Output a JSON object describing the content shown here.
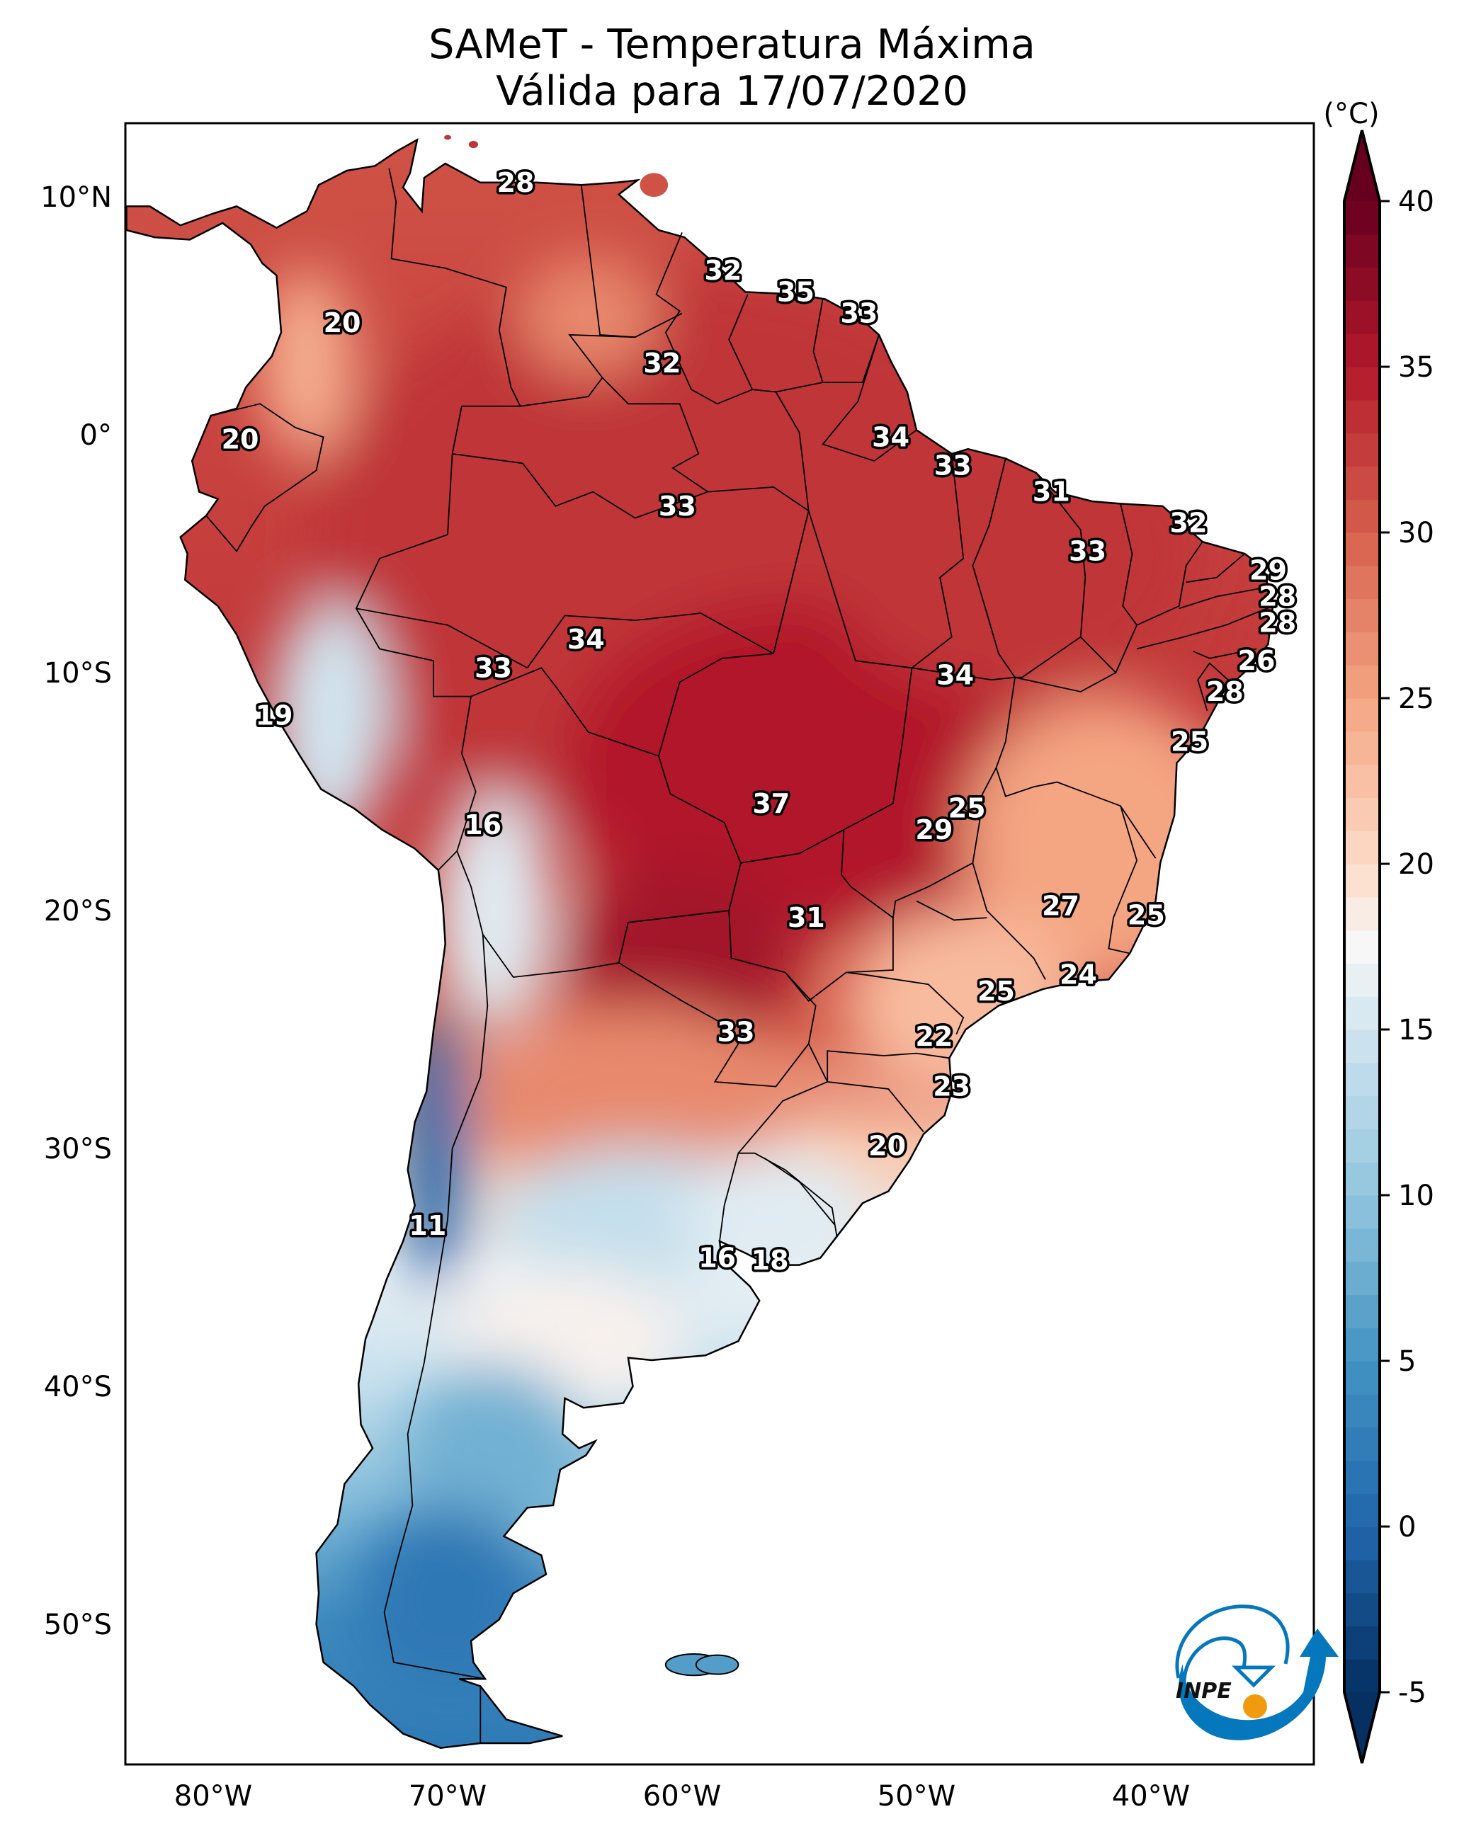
{
  "title": {
    "line1": "SAMeT - Temperatura Máxima",
    "line2": "Válida para 17/07/2020"
  },
  "colorbar": {
    "unit_label": "(°C)",
    "min": -5,
    "max": 40,
    "extend": "both",
    "ticks": [
      "40",
      "35",
      "30",
      "25",
      "20",
      "15",
      "10",
      "5",
      "0",
      "-5"
    ],
    "tick_values": [
      40,
      35,
      30,
      25,
      20,
      15,
      10,
      5,
      0,
      -5
    ],
    "colormap": "RdBu_r",
    "stops": [
      {
        "v": -5,
        "c": "#053061"
      },
      {
        "v": 0,
        "c": "#2166ac"
      },
      {
        "v": 5,
        "c": "#4393c3"
      },
      {
        "v": 10,
        "c": "#92c5de"
      },
      {
        "v": 15,
        "c": "#d1e5f0"
      },
      {
        "v": 17.5,
        "c": "#f7f7f7"
      },
      {
        "v": 20,
        "c": "#fddbc7"
      },
      {
        "v": 25,
        "c": "#f4a582"
      },
      {
        "v": 30,
        "c": "#d6604d"
      },
      {
        "v": 35,
        "c": "#b2182b"
      },
      {
        "v": 40,
        "c": "#67001f"
      }
    ]
  },
  "axes": {
    "lat_ticks": [
      {
        "v": 10,
        "label": "10°N"
      },
      {
        "v": 0,
        "label": "0°"
      },
      {
        "v": -10,
        "label": "10°S"
      },
      {
        "v": -20,
        "label": "20°S"
      },
      {
        "v": -30,
        "label": "30°S"
      },
      {
        "v": -40,
        "label": "40°S"
      },
      {
        "v": -50,
        "label": "50°S"
      }
    ],
    "lon_ticks": [
      {
        "v": -80,
        "label": "80°W"
      },
      {
        "v": -70,
        "label": "70°W"
      },
      {
        "v": -60,
        "label": "60°W"
      },
      {
        "v": -50,
        "label": "50°W"
      },
      {
        "v": -40,
        "label": "40°W"
      }
    ],
    "extent": {
      "lon": [
        -83.75,
        -33.05
      ],
      "lat": [
        -55.9,
        13.1
      ]
    }
  },
  "chart_data": {
    "type": "heatmap",
    "title": "SAMeT - Temperatura Máxima / Válida para 17/07/2020",
    "variable": "Maximum temperature",
    "unit": "°C",
    "xlabel": "",
    "ylabel": "",
    "grid": false,
    "legend": "colorbar right",
    "clim": [
      -5,
      40
    ],
    "point_labels": [
      {
        "lon": -67.1,
        "lat": 10.6,
        "value": 28
      },
      {
        "lon": -74.5,
        "lat": 4.7,
        "value": 20
      },
      {
        "lon": -58.25,
        "lat": 6.9,
        "value": 32
      },
      {
        "lon": -55.15,
        "lat": 6.0,
        "value": 35
      },
      {
        "lon": -52.45,
        "lat": 5.1,
        "value": 33
      },
      {
        "lon": -60.85,
        "lat": 3.0,
        "value": 32
      },
      {
        "lon": -78.85,
        "lat": -0.2,
        "value": 20
      },
      {
        "lon": -51.1,
        "lat": -0.1,
        "value": 34
      },
      {
        "lon": -48.45,
        "lat": -1.3,
        "value": 33
      },
      {
        "lon": -60.2,
        "lat": -3.0,
        "value": 33
      },
      {
        "lon": -44.25,
        "lat": -2.4,
        "value": 31
      },
      {
        "lon": -38.4,
        "lat": -3.7,
        "value": 32
      },
      {
        "lon": -42.7,
        "lat": -4.9,
        "value": 33
      },
      {
        "lon": -35.0,
        "lat": -5.7,
        "value": 29
      },
      {
        "lon": -34.6,
        "lat": -6.8,
        "value": 28
      },
      {
        "lon": -34.6,
        "lat": -7.9,
        "value": 28
      },
      {
        "lon": -64.1,
        "lat": -8.6,
        "value": 34
      },
      {
        "lon": -68.05,
        "lat": -9.8,
        "value": 33
      },
      {
        "lon": -48.35,
        "lat": -10.1,
        "value": 34
      },
      {
        "lon": -35.5,
        "lat": -9.5,
        "value": 26
      },
      {
        "lon": -36.85,
        "lat": -10.8,
        "value": 28
      },
      {
        "lon": -77.4,
        "lat": -11.8,
        "value": 19
      },
      {
        "lon": -38.35,
        "lat": -12.9,
        "value": 25
      },
      {
        "lon": -68.5,
        "lat": -16.4,
        "value": 16
      },
      {
        "lon": -56.2,
        "lat": -15.5,
        "value": 37
      },
      {
        "lon": -47.85,
        "lat": -15.7,
        "value": 25
      },
      {
        "lon": -49.25,
        "lat": -16.6,
        "value": 29
      },
      {
        "lon": -43.85,
        "lat": -19.8,
        "value": 27
      },
      {
        "lon": -40.2,
        "lat": -20.2,
        "value": 25
      },
      {
        "lon": -54.7,
        "lat": -20.3,
        "value": 31
      },
      {
        "lon": -43.1,
        "lat": -22.7,
        "value": 24
      },
      {
        "lon": -46.6,
        "lat": -23.4,
        "value": 25
      },
      {
        "lon": -57.7,
        "lat": -25.1,
        "value": 33
      },
      {
        "lon": -49.25,
        "lat": -25.3,
        "value": 22
      },
      {
        "lon": -48.5,
        "lat": -27.4,
        "value": 23
      },
      {
        "lon": -51.25,
        "lat": -29.9,
        "value": 20
      },
      {
        "lon": -70.85,
        "lat": -33.25,
        "value": 11
      },
      {
        "lon": -58.5,
        "lat": -34.6,
        "value": 16
      },
      {
        "lon": -56.25,
        "lat": -34.7,
        "value": 18
      }
    ],
    "field_blobs": [
      {
        "lon": -60,
        "lat": -5,
        "rlon": 16,
        "rlat": 12,
        "value": 33
      },
      {
        "lon": -55,
        "lat": -14,
        "rlon": 10,
        "rlat": 7,
        "value": 35
      },
      {
        "lon": -60,
        "lat": -22,
        "rlon": 5,
        "rlat": 4,
        "value": 36
      },
      {
        "lon": -46,
        "lat": -5,
        "rlon": 8,
        "rlat": 6,
        "value": 33
      },
      {
        "lon": -42,
        "lat": -17,
        "rlon": 6,
        "rlat": 6,
        "value": 25
      },
      {
        "lon": -48,
        "lat": -24,
        "rlon": 5,
        "rlat": 4,
        "value": 23
      },
      {
        "lon": -62,
        "lat": -28,
        "rlon": 7,
        "rlat": 4,
        "value": 27
      },
      {
        "lon": -62,
        "lat": -33,
        "rlon": 6,
        "rlat": 3,
        "value": 14
      },
      {
        "lon": -56,
        "lat": -33,
        "rlon": 4,
        "rlat": 3,
        "value": 16
      },
      {
        "lon": -65,
        "lat": -38,
        "rlon": 5,
        "rlat": 3,
        "value": 18
      },
      {
        "lon": -68,
        "lat": -43,
        "rlon": 4,
        "rlat": 4,
        "value": 8
      },
      {
        "lon": -70,
        "lat": -49,
        "rlon": 4,
        "rlat": 4,
        "value": 2
      },
      {
        "lon": -70.5,
        "lat": -30,
        "rlon": 1.4,
        "rlat": 6,
        "value": 0
      },
      {
        "lon": -75,
        "lat": -12,
        "rlon": 2.5,
        "rlat": 5,
        "value": 15
      },
      {
        "lon": -68,
        "lat": -20,
        "rlon": 2.5,
        "rlat": 5,
        "value": 16
      },
      {
        "lon": -76,
        "lat": 3,
        "rlon": 2,
        "rlat": 4,
        "value": 24
      },
      {
        "lon": -64,
        "lat": 5,
        "rlon": 3,
        "rlat": 2.5,
        "value": 27
      }
    ]
  },
  "logo": {
    "text": "INPE",
    "blue": "#0577bd",
    "orange": "#f29a0e"
  }
}
